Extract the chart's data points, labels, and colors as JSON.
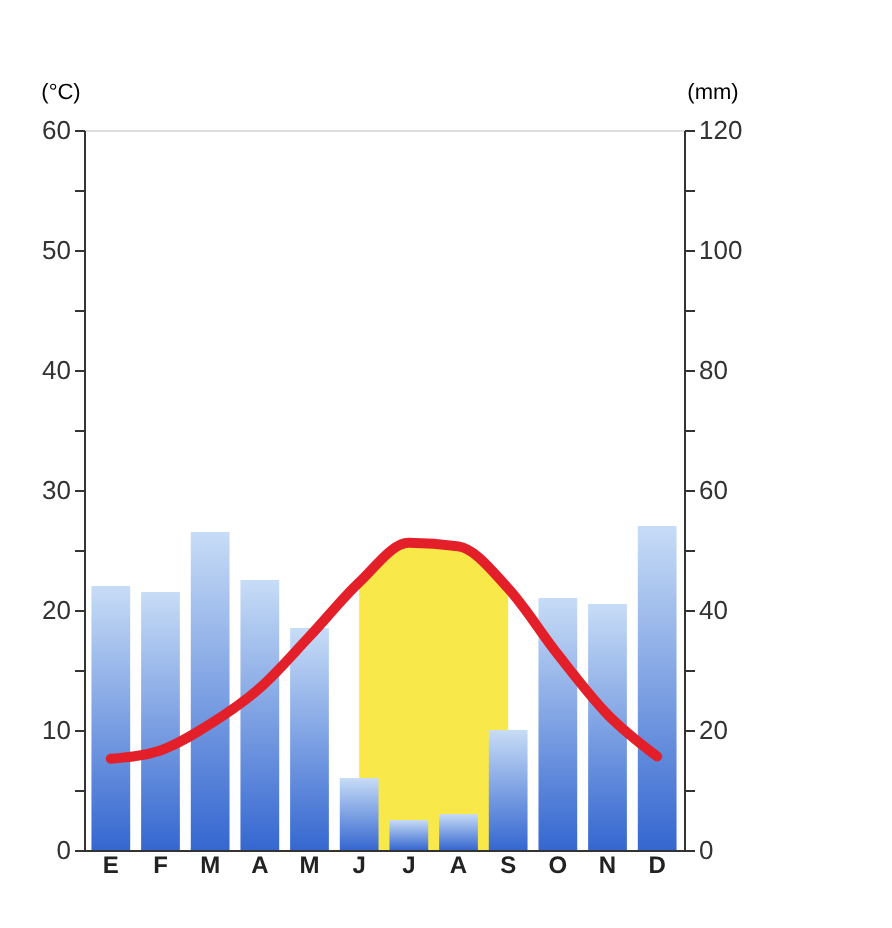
{
  "chart_data": {
    "type": "bar",
    "categories": [
      "E",
      "F",
      "M",
      "A",
      "M",
      "J",
      "J",
      "A",
      "S",
      "O",
      "N",
      "D"
    ],
    "ylabel": "(°C)",
    "y2label": "(mm)",
    "ylim": [
      0,
      60
    ],
    "yticks": [
      0,
      {
        "value": 5,
        "label": null
      },
      10,
      {
        "value": 15,
        "label": null
      },
      20,
      {
        "value": 25,
        "label": null
      },
      30,
      {
        "value": 35,
        "label": null
      },
      40,
      {
        "value": 45,
        "label": null
      },
      50,
      {
        "value": 55,
        "label": null
      },
      60
    ],
    "y2lim": [
      0,
      120
    ],
    "y2ticks": [
      0,
      {
        "value": 10,
        "label": null
      },
      20,
      {
        "value": 30,
        "label": null
      },
      40,
      {
        "value": 50,
        "label": null
      },
      60,
      {
        "value": 70,
        "label": null
      },
      80,
      {
        "value": 90,
        "label": null
      },
      100,
      {
        "value": 110,
        "label": null
      },
      120
    ],
    "grid": false,
    "series": [
      {
        "type": "area",
        "color": "#f8e84a",
        "values": [
          null,
          null,
          null,
          null,
          null,
          22.3,
          25.6,
          25.3,
          21.8,
          null,
          null,
          null
        ]
      },
      {
        "axis": "y2",
        "color": "#3567d0",
        "values": [
          44,
          43,
          53,
          45,
          37,
          12,
          5,
          6,
          20,
          42,
          41,
          54
        ]
      },
      {
        "type": "line",
        "color": "#e3202a",
        "values": [
          7.6,
          8.3,
          10.5,
          13.5,
          17.8,
          22.3,
          25.6,
          25.3,
          21.8,
          16.3,
          11.3,
          7.8
        ]
      }
    ]
  }
}
